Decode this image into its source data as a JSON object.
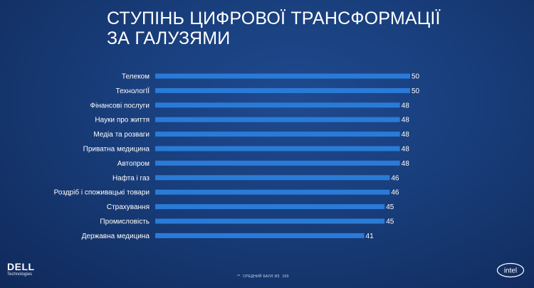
{
  "title": {
    "line1": "СТУПІНЬ ЦИФРОВОЇ ТРАНСФОРМАЦІЇ",
    "line2": "ЗА ГАЛУЗЯМИ"
  },
  "chart_data": {
    "type": "bar",
    "orientation": "horizontal",
    "title": "СТУПІНЬ ЦИФРОВОЇ ТРАНСФОРМАЦІЇ ЗА ГАЛУЗЯМИ",
    "categories": [
      "Телеком",
      "ТехнологІЇ",
      "Фінансові послуги",
      "Науки про життя",
      "Медіа та розваги",
      "Приватна медицина",
      "Автопром",
      "Нафта і газ",
      "Роздріб і споживацькі товари",
      "Страхування",
      "Промисловість",
      "Державна медицина"
    ],
    "values": [
      50,
      50,
      48,
      48,
      48,
      48,
      48,
      46,
      46,
      45,
      45,
      41
    ],
    "xlim": [
      0,
      50
    ],
    "bar_color": "#2a7bd8"
  },
  "footnote": {
    "prefix": "**",
    "text": "СРЕДНИЙ БАЛЛ ИЗ",
    "value": "100"
  },
  "logos": {
    "dell_word": "DELL",
    "dell_sub": "Technologies",
    "intel_word": "intel"
  }
}
